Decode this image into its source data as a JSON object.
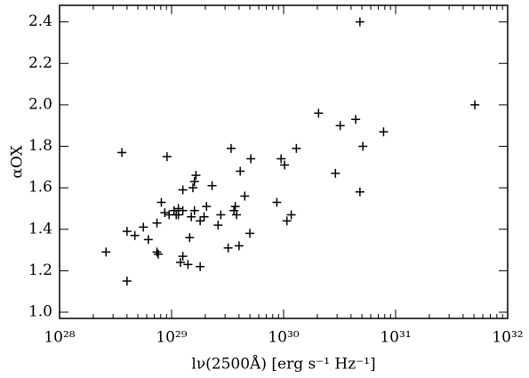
{
  "chart_data": {
    "type": "scatter",
    "x_label": "lν(2500Å) [erg s⁻¹ Hz⁻¹]",
    "y_label": "αOX",
    "x_log": true,
    "color": "#000000",
    "xlim": [
      1e+28,
      1e+32
    ],
    "xticks": [
      {
        "value": 1e+28,
        "label": "10²⁸"
      },
      {
        "value": 1e+29,
        "label": "10²⁹"
      },
      {
        "value": 1e+30,
        "label": "10³⁰"
      },
      {
        "value": 1e+31,
        "label": "10³¹"
      },
      {
        "value": 1e+32,
        "label": "10³²"
      }
    ],
    "ylim": [
      0.97,
      2.48
    ],
    "yticks": [
      {
        "value": 1,
        "label": "1.0"
      },
      1.2,
      1.4,
      1.6,
      1.8,
      {
        "value": 2,
        "label": "2.0"
      },
      2.2,
      2.4
    ],
    "x": [
      2.6e+28,
      3.6e+28,
      4e+28,
      4e+28,
      4.7e+28,
      5.6e+28,
      6.2e+28,
      7.4e+28,
      7.4e+28,
      7.6e+28,
      8.1e+28,
      8.7e+28,
      9.1e+28,
      9.5e+28,
      1.05e+29,
      1.1e+29,
      1.15e+29,
      1.15e+29,
      1.2e+29,
      1.26e+29,
      1.26e+29,
      1.26e+29,
      1.4e+29,
      1.45e+29,
      1.5e+29,
      1.55e+29,
      1.6e+29,
      1.6e+29,
      1.65e+29,
      1.8e+29,
      1.8e+29,
      1.95e+29,
      2.05e+29,
      2.3e+29,
      2.6e+29,
      2.75e+29,
      3.2e+29,
      3.4e+29,
      3.6e+29,
      3.7e+29,
      3.8e+29,
      4e+29,
      4.1e+29,
      4.5e+29,
      5e+29,
      5.1e+29,
      8.7e+29,
      9.5e+29,
      1.02e+30,
      1.07e+30,
      1.17e+30,
      1.3e+30,
      2.05e+30,
      2.9e+30,
      3.2e+30,
      4.4e+30,
      4.8e+30,
      4.8e+30,
      5.1e+30,
      7.8e+30,
      5.1e+31
    ],
    "values": [
      1.29,
      1.77,
      1.15,
      1.39,
      1.37,
      1.41,
      1.35,
      1.29,
      1.43,
      1.28,
      1.53,
      1.48,
      1.75,
      1.47,
      1.49,
      1.47,
      1.5,
      1.47,
      1.24,
      1.27,
      1.49,
      1.59,
      1.23,
      1.36,
      1.46,
      1.6,
      1.63,
      1.49,
      1.66,
      1.44,
      1.22,
      1.46,
      1.51,
      1.61,
      1.42,
      1.47,
      1.31,
      1.79,
      1.49,
      1.51,
      1.47,
      1.32,
      1.68,
      1.56,
      1.38,
      1.74,
      1.53,
      1.74,
      1.71,
      1.44,
      1.47,
      1.79,
      1.96,
      1.67,
      1.9,
      1.93,
      2.4,
      1.58,
      1.8,
      1.87,
      2.0
    ]
  }
}
